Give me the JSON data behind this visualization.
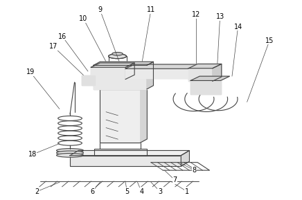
{
  "background_color": "#ffffff",
  "figure_width": 4.36,
  "figure_height": 2.89,
  "dpi": 100,
  "line_color": "#444444",
  "label_fontsize": 7.0,
  "annotations": {
    "1": {
      "label": [
        0.62,
        0.038
      ],
      "point": [
        0.57,
        0.085
      ]
    },
    "2": {
      "label": [
        0.12,
        0.038
      ],
      "point": [
        0.195,
        0.085
      ]
    },
    "3": {
      "label": [
        0.53,
        0.038
      ],
      "point": [
        0.5,
        0.085
      ]
    },
    "4": {
      "label": [
        0.468,
        0.038
      ],
      "point": [
        0.455,
        0.085
      ]
    },
    "5": {
      "label": [
        0.42,
        0.038
      ],
      "point": [
        0.415,
        0.085
      ]
    },
    "6": {
      "label": [
        0.305,
        0.038
      ],
      "point": [
        0.33,
        0.085
      ]
    },
    "7": {
      "label": [
        0.58,
        0.095
      ],
      "point": [
        0.545,
        0.145
      ]
    },
    "8": {
      "label": [
        0.645,
        0.145
      ],
      "point": [
        0.6,
        0.18
      ]
    },
    "9": {
      "label": [
        0.33,
        0.955
      ],
      "point": [
        0.395,
        0.69
      ]
    },
    "10": {
      "label": [
        0.275,
        0.91
      ],
      "point": [
        0.36,
        0.665
      ]
    },
    "11": {
      "label": [
        0.5,
        0.955
      ],
      "point": [
        0.46,
        0.6
      ]
    },
    "12": {
      "label": [
        0.65,
        0.93
      ],
      "point": [
        0.65,
        0.66
      ]
    },
    "13": {
      "label": [
        0.73,
        0.92
      ],
      "point": [
        0.72,
        0.65
      ]
    },
    "14": {
      "label": [
        0.79,
        0.87
      ],
      "point": [
        0.77,
        0.62
      ]
    },
    "15": {
      "label": [
        0.895,
        0.8
      ],
      "point": [
        0.82,
        0.49
      ]
    },
    "16": {
      "label": [
        0.205,
        0.82
      ],
      "point": [
        0.29,
        0.645
      ]
    },
    "17": {
      "label": [
        0.175,
        0.77
      ],
      "point": [
        0.275,
        0.625
      ]
    },
    "19": {
      "label": [
        0.098,
        0.64
      ],
      "point": [
        0.195,
        0.455
      ]
    },
    "18": {
      "label": [
        0.105,
        0.225
      ],
      "point": [
        0.195,
        0.28
      ]
    }
  }
}
